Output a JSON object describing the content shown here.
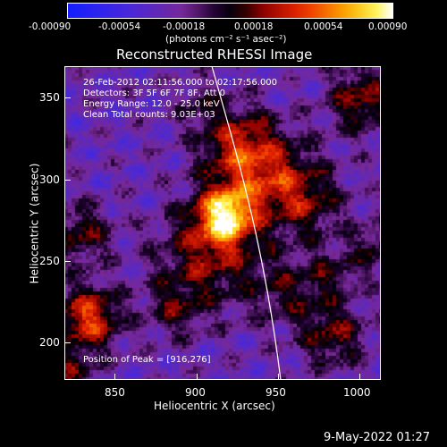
{
  "colorbar": {
    "tick_labels": [
      "-0.00090",
      "-0.00054",
      "-0.00018",
      "0.00018",
      "0.00054",
      "0.00090"
    ],
    "units_label": "(photons cm⁻² s⁻¹ asec⁻²)"
  },
  "plot": {
    "title": "Reconstructed RHESSI Image",
    "info_lines": [
      "26-Feb-2012 02:11:56.000 to 02:17:56.000",
      "Detectors: 3F 5F 6F 7F 8F, Att 0",
      "Energy Range: 12.0 - 25.0 keV",
      "Clean    Total counts: 9.03E+03"
    ],
    "peak_label": "Position of Peak = [916,276]",
    "x_axis_label": "Heliocentric X (arcsec)",
    "y_axis_label": "Heliocentric Y (arcsec)",
    "x_ticks": [
      "850",
      "900",
      "950",
      "1000"
    ],
    "y_ticks": [
      "350",
      "300",
      "250",
      "200"
    ]
  },
  "footer": {
    "date": "9-May-2022 01:27"
  },
  "colors": {
    "background": "#000000",
    "text": "#ffffff"
  }
}
